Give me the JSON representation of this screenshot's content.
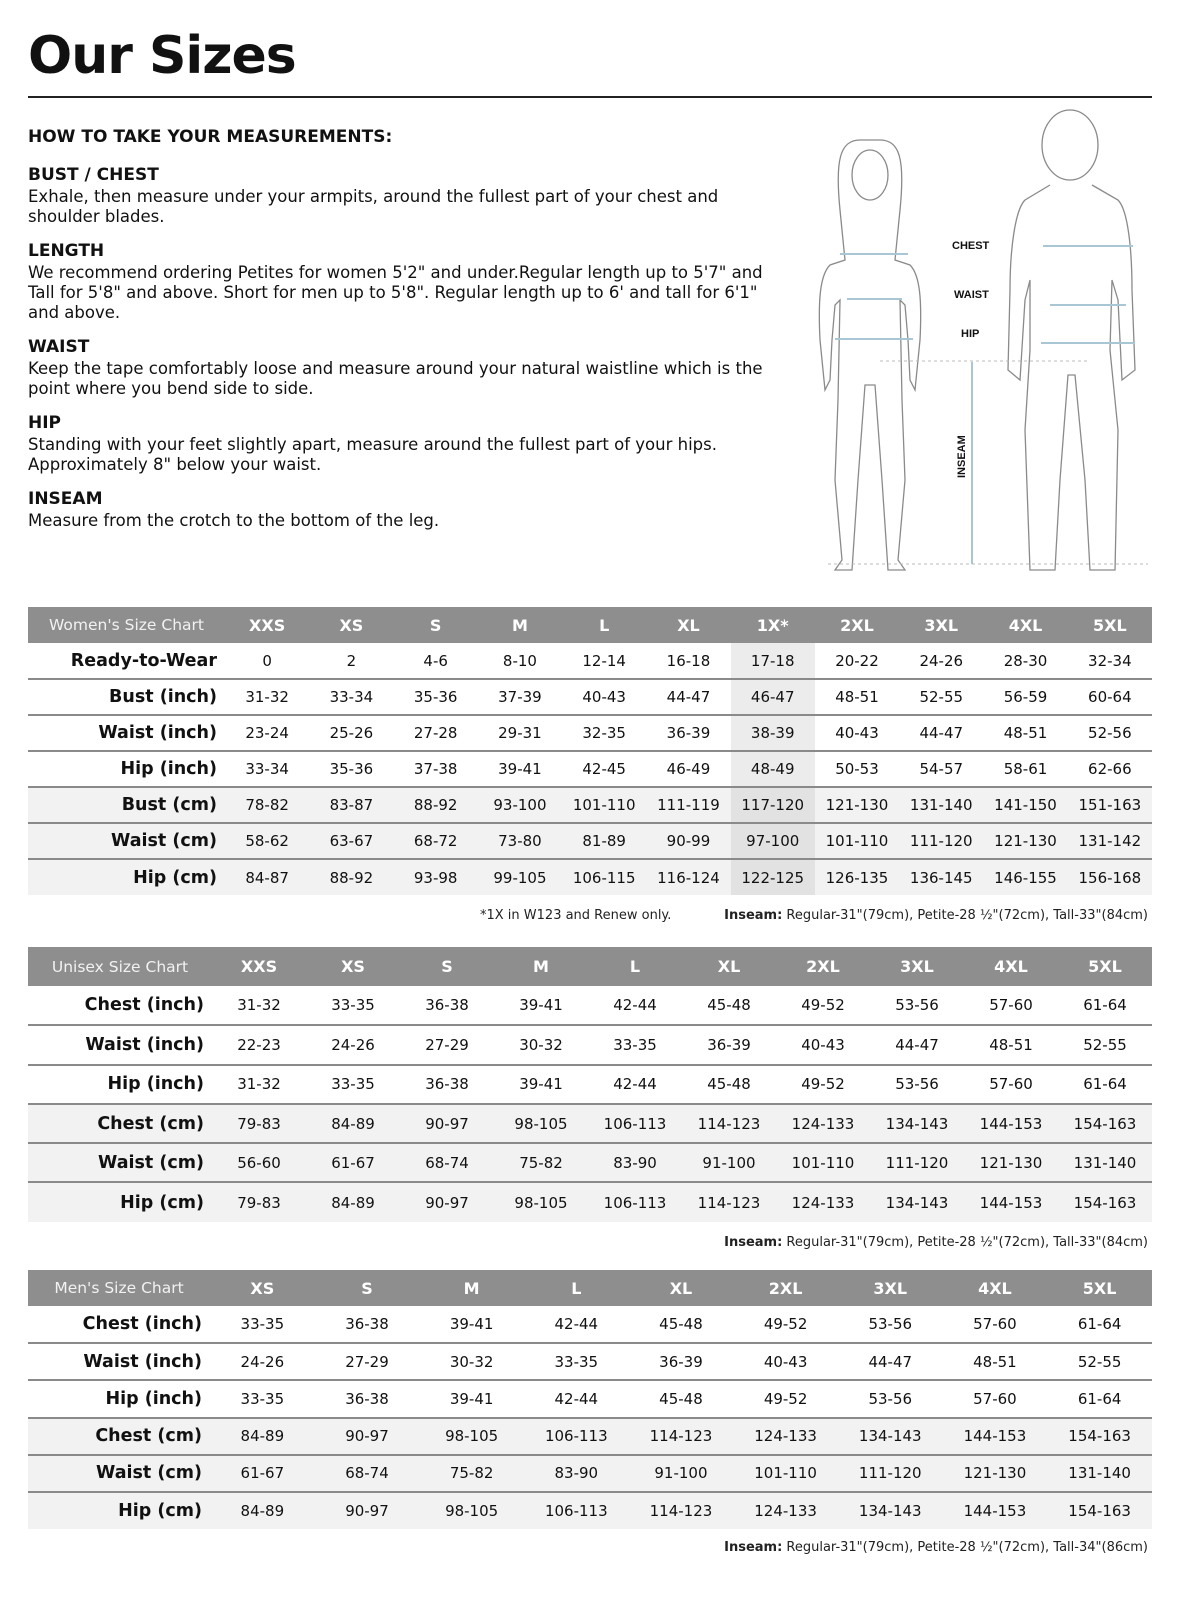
{
  "title": "Our Sizes",
  "guide": {
    "heading": "HOW TO TAKE YOUR MEASUREMENTS:",
    "sections": [
      {
        "title": "BUST / CHEST",
        "text": "Exhale, then measure under your armpits, around the fullest part of your chest and shoulder blades."
      },
      {
        "title": "LENGTH",
        "text": "We recommend ordering Petites for women 5'2\" and under.Regular length up to 5'7\" and Tall for 5'8\" and above. Short for men up to 5'8\". Regular length up to 6' and tall for 6'1\" and above."
      },
      {
        "title": "WAIST",
        "text": "Keep the tape comfortably loose and measure around your natural waistline which is the point where you bend side to side."
      },
      {
        "title": "HIP",
        "text": "Standing with your feet slightly apart, measure around the fullest part of your hips. Approximately 8\" below your waist."
      },
      {
        "title": "INSEAM",
        "text": "Measure from the crotch to the bottom of the leg."
      }
    ]
  },
  "figure": {
    "labels": {
      "chest": "CHEST",
      "waist": "WAIST",
      "hip": "HIP",
      "inseam": "INSEAM"
    },
    "line_color": "#a9c6d4"
  },
  "colors": {
    "header_bg": "#8e8e8e",
    "alt_row": "#f2f2f2",
    "highlight": "#ececec"
  },
  "women": {
    "label": "Women's Size Chart",
    "sizes": [
      "XXS",
      "XS",
      "S",
      "M",
      "L",
      "XL",
      "1X*",
      "2XL",
      "3XL",
      "4XL",
      "5XL"
    ],
    "highlight_col": 6,
    "rows": [
      {
        "label": "Ready-to-Wear",
        "values": [
          "0",
          "2",
          "4-6",
          "8-10",
          "12-14",
          "16-18",
          "17-18",
          "20-22",
          "24-26",
          "28-30",
          "32-34"
        ]
      },
      {
        "label": "Bust (inch)",
        "values": [
          "31-32",
          "33-34",
          "35-36",
          "37-39",
          "40-43",
          "44-47",
          "46-47",
          "48-51",
          "52-55",
          "56-59",
          "60-64"
        ]
      },
      {
        "label": "Waist (inch)",
        "values": [
          "23-24",
          "25-26",
          "27-28",
          "29-31",
          "32-35",
          "36-39",
          "38-39",
          "40-43",
          "44-47",
          "48-51",
          "52-56"
        ]
      },
      {
        "label": "Hip (inch)",
        "values": [
          "33-34",
          "35-36",
          "37-38",
          "39-41",
          "42-45",
          "46-49",
          "48-49",
          "50-53",
          "54-57",
          "58-61",
          "62-66"
        ]
      },
      {
        "label": "Bust (cm)",
        "values": [
          "78-82",
          "83-87",
          "88-92",
          "93-100",
          "101-110",
          "111-119",
          "117-120",
          "121-130",
          "131-140",
          "141-150",
          "151-163"
        ]
      },
      {
        "label": "Waist (cm)",
        "values": [
          "58-62",
          "63-67",
          "68-72",
          "73-80",
          "81-89",
          "90-99",
          "97-100",
          "101-110",
          "111-120",
          "121-130",
          "131-142"
        ]
      },
      {
        "label": "Hip (cm)",
        "values": [
          "84-87",
          "88-92",
          "93-98",
          "99-105",
          "106-115",
          "116-124",
          "122-125",
          "126-135",
          "136-145",
          "146-155",
          "156-168"
        ]
      }
    ],
    "footnote": "*1X in W123 and Renew only.",
    "inseam_label": "Inseam:",
    "inseam": " Regular-31\"(79cm), Petite-28 ½\"(72cm), Tall-33\"(84cm)"
  },
  "unisex": {
    "label": "Unisex Size Chart",
    "sizes": [
      "XXS",
      "XS",
      "S",
      "M",
      "L",
      "XL",
      "2XL",
      "3XL",
      "4XL",
      "5XL"
    ],
    "rows": [
      {
        "label": "Chest (inch)",
        "values": [
          "31-32",
          "33-35",
          "36-38",
          "39-41",
          "42-44",
          "45-48",
          "49-52",
          "53-56",
          "57-60",
          "61-64"
        ]
      },
      {
        "label": "Waist (inch)",
        "values": [
          "22-23",
          "24-26",
          "27-29",
          "30-32",
          "33-35",
          "36-39",
          "40-43",
          "44-47",
          "48-51",
          "52-55"
        ]
      },
      {
        "label": "Hip (inch)",
        "values": [
          "31-32",
          "33-35",
          "36-38",
          "39-41",
          "42-44",
          "45-48",
          "49-52",
          "53-56",
          "57-60",
          "61-64"
        ]
      },
      {
        "label": "Chest (cm)",
        "values": [
          "79-83",
          "84-89",
          "90-97",
          "98-105",
          "106-113",
          "114-123",
          "124-133",
          "134-143",
          "144-153",
          "154-163"
        ]
      },
      {
        "label": "Waist (cm)",
        "values": [
          "56-60",
          "61-67",
          "68-74",
          "75-82",
          "83-90",
          "91-100",
          "101-110",
          "111-120",
          "121-130",
          "131-140"
        ]
      },
      {
        "label": "Hip (cm)",
        "values": [
          "79-83",
          "84-89",
          "90-97",
          "98-105",
          "106-113",
          "114-123",
          "124-133",
          "134-143",
          "144-153",
          "154-163"
        ]
      }
    ],
    "inseam_label": "Inseam:",
    "inseam": " Regular-31\"(79cm), Petite-28 ½\"(72cm), Tall-33\"(84cm)"
  },
  "men": {
    "label": "Men's Size Chart",
    "sizes": [
      "XS",
      "S",
      "M",
      "L",
      "XL",
      "2XL",
      "3XL",
      "4XL",
      "5XL"
    ],
    "rows": [
      {
        "label": "Chest (inch)",
        "values": [
          "33-35",
          "36-38",
          "39-41",
          "42-44",
          "45-48",
          "49-52",
          "53-56",
          "57-60",
          "61-64"
        ]
      },
      {
        "label": "Waist (inch)",
        "values": [
          "24-26",
          "27-29",
          "30-32",
          "33-35",
          "36-39",
          "40-43",
          "44-47",
          "48-51",
          "52-55"
        ]
      },
      {
        "label": "Hip (inch)",
        "values": [
          "33-35",
          "36-38",
          "39-41",
          "42-44",
          "45-48",
          "49-52",
          "53-56",
          "57-60",
          "61-64"
        ]
      },
      {
        "label": "Chest (cm)",
        "values": [
          "84-89",
          "90-97",
          "98-105",
          "106-113",
          "114-123",
          "124-133",
          "134-143",
          "144-153",
          "154-163"
        ]
      },
      {
        "label": "Waist (cm)",
        "values": [
          "61-67",
          "68-74",
          "75-82",
          "83-90",
          "91-100",
          "101-110",
          "111-120",
          "121-130",
          "131-140"
        ]
      },
      {
        "label": "Hip (cm)",
        "values": [
          "84-89",
          "90-97",
          "98-105",
          "106-113",
          "114-123",
          "124-133",
          "134-143",
          "144-153",
          "154-163"
        ]
      }
    ],
    "inseam_label": "Inseam:",
    "inseam": " Regular-31\"(79cm), Petite-28 ½\"(72cm), Tall-34\"(86cm)"
  }
}
